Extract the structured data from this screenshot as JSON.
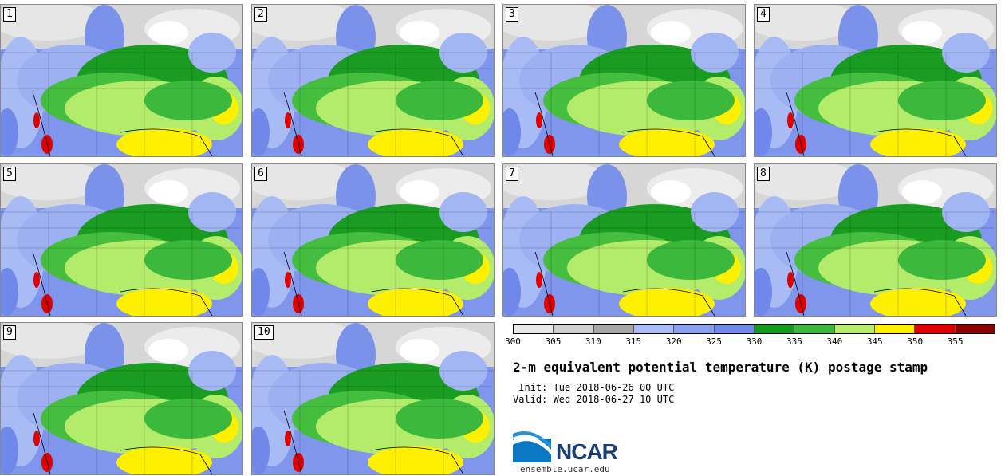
{
  "stamps": [
    {
      "label": "1"
    },
    {
      "label": "2"
    },
    {
      "label": "3"
    },
    {
      "label": "4"
    },
    {
      "label": "5"
    },
    {
      "label": "6"
    },
    {
      "label": "7"
    },
    {
      "label": "8"
    },
    {
      "label": "9"
    },
    {
      "label": "10"
    }
  ],
  "colorbar": {
    "ticks": [
      "300",
      "305",
      "310",
      "315",
      "320",
      "325",
      "330",
      "335",
      "340",
      "345",
      "350",
      "355"
    ],
    "colors": [
      "#e8e8e8",
      "#cfcfcf",
      "#a6a6a6",
      "#aabcf5",
      "#8aa0ee",
      "#6f88ea",
      "#129a1a",
      "#3cb83c",
      "#b4ee6a",
      "#fff000",
      "#e00000",
      "#8b0000"
    ]
  },
  "title": "2-m equivalent potential temperature (K) postage stamp",
  "init_line": " Init: Tue 2018-06-26 00 UTC",
  "valid_line": "Valid: Wed 2018-06-27 10 UTC",
  "logo": {
    "text": "NCAR",
    "site": "ensemble.ucar.edu"
  }
}
